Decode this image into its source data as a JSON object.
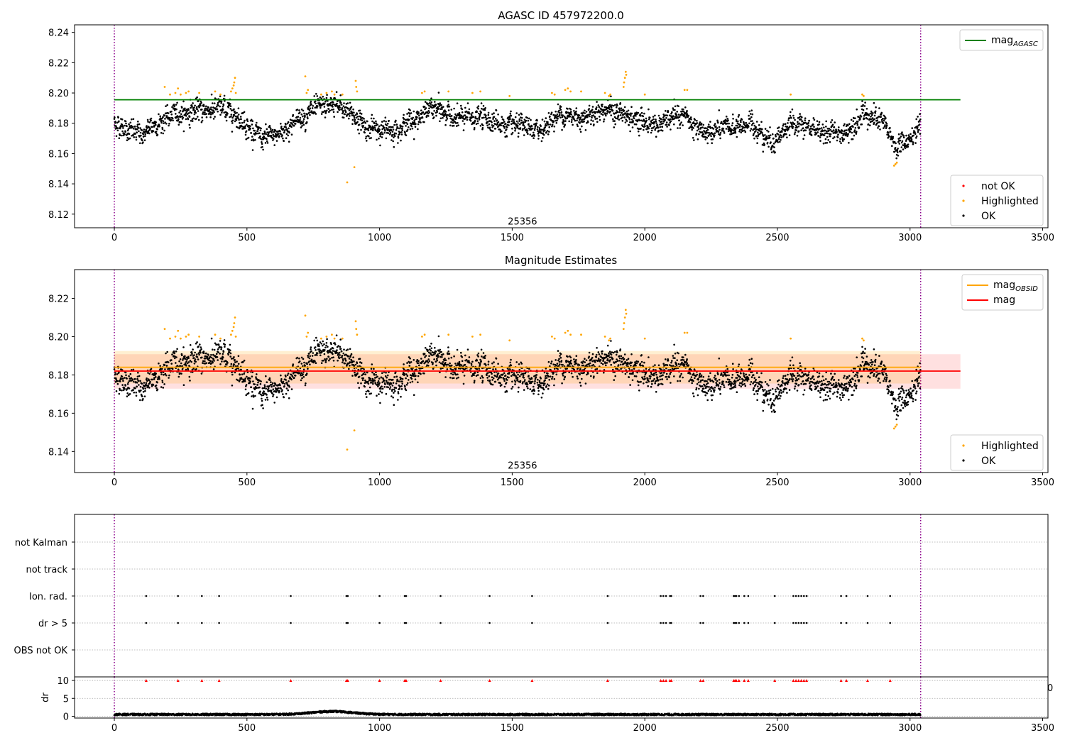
{
  "chart_data": [
    {
      "type": "scatter",
      "title": "AGASC ID 457972200.0",
      "xlim": [
        -150,
        3520
      ],
      "ylim": [
        8.111,
        8.245
      ],
      "xticks": [
        0,
        500,
        1000,
        1500,
        2000,
        2500,
        3000,
        3500
      ],
      "yticks": [
        8.12,
        8.14,
        8.16,
        8.18,
        8.2,
        8.22,
        8.24
      ],
      "annotation": {
        "text": "25356",
        "x": 1520,
        "y": 8.113
      },
      "vlines": {
        "x": [
          0,
          3040
        ],
        "color": "#8b008b",
        "style": "dotted"
      },
      "hlines": [
        {
          "label": "mag",
          "label_sub": "AGASC",
          "y": 8.1955,
          "xmin": 0,
          "xmax": 3190,
          "color": "#008000"
        }
      ],
      "legend_top": {
        "position": "upper right",
        "entries": [
          {
            "label": "mag",
            "label_sub": "AGASC",
            "color": "#008000",
            "marker": "line"
          }
        ]
      },
      "legend_bottom": {
        "position": "lower right",
        "entries": [
          {
            "label": "not OK",
            "color": "#ff0000",
            "marker": "dot"
          },
          {
            "label": "Highlighted",
            "color": "#ffa500",
            "marker": "dot"
          },
          {
            "label": "OK",
            "color": "#000000",
            "marker": "dot"
          }
        ]
      },
      "series": [
        {
          "name": "OK",
          "color": "#000000",
          "n_points": 3040,
          "x_range": [
            0,
            3040
          ],
          "trend": [
            [
              0,
              8.18
            ],
            [
              100,
              8.172
            ],
            [
              160,
              8.18
            ],
            [
              230,
              8.186
            ],
            [
              300,
              8.188
            ],
            [
              400,
              8.19
            ],
            [
              460,
              8.186
            ],
            [
              500,
              8.179
            ],
            [
              560,
              8.169
            ],
            [
              620,
              8.173
            ],
            [
              700,
              8.184
            ],
            [
              760,
              8.189
            ],
            [
              830,
              8.192
            ],
            [
              900,
              8.186
            ],
            [
              960,
              8.176
            ],
            [
              1050,
              8.176
            ],
            [
              1150,
              8.184
            ],
            [
              1200,
              8.19
            ],
            [
              1300,
              8.183
            ],
            [
              1400,
              8.184
            ],
            [
              1480,
              8.178
            ],
            [
              1600,
              8.175
            ],
            [
              1680,
              8.186
            ],
            [
              1760,
              8.184
            ],
            [
              1850,
              8.19
            ],
            [
              1950,
              8.183
            ],
            [
              2050,
              8.179
            ],
            [
              2150,
              8.186
            ],
            [
              2200,
              8.173
            ],
            [
              2300,
              8.176
            ],
            [
              2400,
              8.18
            ],
            [
              2480,
              8.168
            ],
            [
              2550,
              8.179
            ],
            [
              2650,
              8.176
            ],
            [
              2750,
              8.172
            ],
            [
              2820,
              8.187
            ],
            [
              2900,
              8.18
            ],
            [
              2950,
              8.163
            ],
            [
              3040,
              8.178
            ]
          ],
          "scatter": 0.006
        },
        {
          "name": "Highlighted",
          "color": "#ffa500",
          "points": [
            [
              190,
              8.204
            ],
            [
              210,
              8.199
            ],
            [
              230,
              8.2
            ],
            [
              240,
              8.203
            ],
            [
              250,
              8.199
            ],
            [
              270,
              8.2
            ],
            [
              280,
              8.201
            ],
            [
              320,
              8.2
            ],
            [
              380,
              8.201
            ],
            [
              400,
              8.199
            ],
            [
              440,
              8.201
            ],
            [
              445,
              8.203
            ],
            [
              450,
              8.205
            ],
            [
              452,
              8.207
            ],
            [
              455,
              8.21
            ],
            [
              458,
              8.2
            ],
            [
              720,
              8.211
            ],
            [
              725,
              8.2
            ],
            [
              730,
              8.202
            ],
            [
              780,
              8.199
            ],
            [
              800,
              8.2
            ],
            [
              820,
              8.201
            ],
            [
              830,
              8.199
            ],
            [
              860,
              8.199
            ],
            [
              878,
              8.141
            ],
            [
              905,
              8.151
            ],
            [
              910,
              8.208
            ],
            [
              912,
              8.204
            ],
            [
              915,
              8.201
            ],
            [
              1160,
              8.2
            ],
            [
              1170,
              8.201
            ],
            [
              1260,
              8.201
            ],
            [
              1350,
              8.2
            ],
            [
              1380,
              8.201
            ],
            [
              1490,
              8.198
            ],
            [
              1650,
              8.2
            ],
            [
              1660,
              8.199
            ],
            [
              1700,
              8.202
            ],
            [
              1710,
              8.203
            ],
            [
              1720,
              8.201
            ],
            [
              1760,
              8.201
            ],
            [
              1850,
              8.2
            ],
            [
              1865,
              8.198
            ],
            [
              1870,
              8.199
            ],
            [
              1920,
              8.204
            ],
            [
              1922,
              8.207
            ],
            [
              1925,
              8.21
            ],
            [
              1928,
              8.214
            ],
            [
              1930,
              8.212
            ],
            [
              2000,
              8.199
            ],
            [
              2150,
              8.202
            ],
            [
              2160,
              8.202
            ],
            [
              2550,
              8.199
            ],
            [
              2820,
              8.199
            ],
            [
              2825,
              8.198
            ],
            [
              2940,
              8.152
            ],
            [
              2945,
              8.153
            ],
            [
              2950,
              8.154
            ]
          ]
        },
        {
          "name": "not OK",
          "color": "#ff0000",
          "points": []
        }
      ]
    },
    {
      "type": "scatter",
      "title": "Magnitude Estimates",
      "xlim": [
        -150,
        3520
      ],
      "ylim": [
        8.129,
        8.235
      ],
      "xticks": [
        0,
        500,
        1000,
        1500,
        2000,
        2500,
        3000,
        3500
      ],
      "yticks": [
        8.14,
        8.16,
        8.18,
        8.2,
        8.22
      ],
      "annotation": {
        "text": "25356",
        "x": 1520,
        "y": 8.131
      },
      "vlines": {
        "x": [
          0,
          3040
        ],
        "color": "#8b008b",
        "style": "dotted"
      },
      "bands": [
        {
          "y0": 8.1728,
          "y1": 8.1908,
          "xmin": 0,
          "xmax": 3190,
          "color": "#ff0000",
          "opacity": 0.12
        },
        {
          "y0": 8.1755,
          "y1": 8.1925,
          "xmin": 0,
          "xmax": 3040,
          "color": "#ffa500",
          "opacity": 0.18
        }
      ],
      "hlines": [
        {
          "label": "mag",
          "label_sub": "OBSID",
          "y": 8.184,
          "xmin": 0,
          "xmax": 3040,
          "color": "#ffa500"
        },
        {
          "label": "mag",
          "label_sub": "",
          "y": 8.182,
          "xmin": 0,
          "xmax": 3190,
          "color": "#ff0000"
        }
      ],
      "legend_top": {
        "position": "upper right",
        "entries": [
          {
            "label": "mag",
            "label_sub": "OBSID",
            "color": "#ffa500",
            "marker": "line"
          },
          {
            "label": "mag",
            "label_sub": "",
            "color": "#ff0000",
            "marker": "line"
          }
        ]
      },
      "legend_bottom": {
        "position": "lower right",
        "entries": [
          {
            "label": "Highlighted",
            "color": "#ffa500",
            "marker": "dot"
          },
          {
            "label": "OK",
            "color": "#000000",
            "marker": "dot"
          }
        ]
      },
      "series_ref": "same points as panel 1"
    },
    {
      "type": "scatter",
      "title": "",
      "xlim": [
        -150,
        3520
      ],
      "categories": [
        "not Kalman",
        "not track",
        "Ion. rad.",
        "dr > 5",
        "OBS not OK"
      ],
      "vlines": {
        "x": [
          0,
          3040
        ],
        "color": "#8b008b",
        "style": "dotted"
      },
      "series": [
        {
          "name": "Ion. rad.",
          "color": "#000000",
          "x": [
            120,
            240,
            330,
            395,
            665,
            875,
            880,
            1000,
            1095,
            1100,
            1230,
            1415,
            1575,
            1860,
            2060,
            2070,
            2080,
            2095,
            2100,
            2210,
            2220,
            2335,
            2340,
            2345,
            2355,
            2375,
            2390,
            2490,
            2560,
            2570,
            2580,
            2590,
            2600,
            2610,
            2740,
            2760,
            2840,
            2925
          ]
        },
        {
          "name": "dr > 5",
          "color": "#000000",
          "x": [
            120,
            240,
            330,
            395,
            665,
            875,
            880,
            1000,
            1095,
            1100,
            1230,
            1415,
            1575,
            1860,
            2060,
            2070,
            2080,
            2095,
            2100,
            2210,
            2220,
            2335,
            2340,
            2345,
            2355,
            2375,
            2390,
            2490,
            2560,
            2570,
            2580,
            2590,
            2600,
            2610,
            2740,
            2760,
            2840,
            2925
          ]
        }
      ]
    },
    {
      "type": "scatter",
      "title": "",
      "ylabel": "dr",
      "xlim": [
        -150,
        3520
      ],
      "ylim": [
        -0.5,
        11
      ],
      "xticks": [
        0,
        500,
        1000,
        1500,
        2000,
        2500,
        3000,
        3500
      ],
      "yticks": [
        0,
        5,
        10
      ],
      "vlines": {
        "x": [
          0,
          3040
        ],
        "color": "#8b008b",
        "style": "dotted"
      },
      "series": [
        {
          "name": "dr",
          "color": "#000000",
          "n_points": 3040,
          "x_range": [
            0,
            3040
          ],
          "typical": 0.5,
          "hump": {
            "x": 820,
            "y": 1.4
          }
        },
        {
          "name": "dr clipped",
          "color": "#ff0000",
          "marker": "triangle",
          "y": 10,
          "x": [
            120,
            240,
            330,
            395,
            665,
            875,
            880,
            1000,
            1095,
            1100,
            1230,
            1415,
            1575,
            1860,
            2060,
            2070,
            2080,
            2095,
            2100,
            2210,
            2220,
            2335,
            2340,
            2345,
            2355,
            2375,
            2390,
            2490,
            2560,
            2570,
            2580,
            2590,
            2600,
            2610,
            2740,
            2760,
            2840,
            2925
          ]
        }
      ],
      "stray_tick_text": "0"
    }
  ]
}
